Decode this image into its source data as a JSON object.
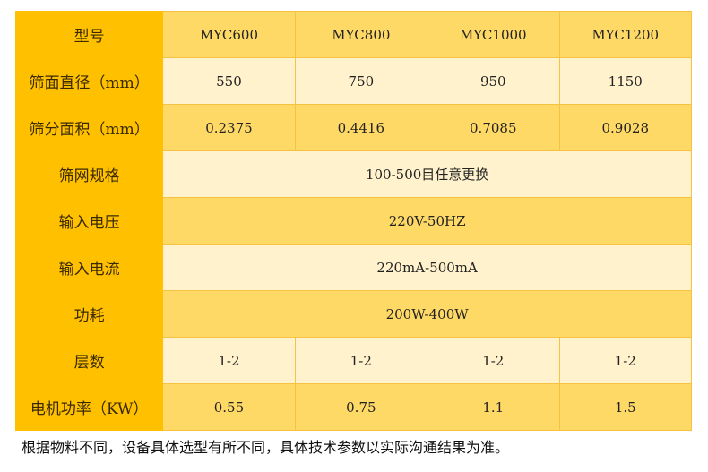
{
  "rows": [
    {
      "label": "型号",
      "values": [
        "MYC600",
        "MYC800",
        "MYC1000",
        "MYC1200"
      ]
    },
    {
      "label": "筛面直径（mm）",
      "values": [
        "550",
        "750",
        "950",
        "1150"
      ]
    },
    {
      "label": "筛分面积（mm）",
      "values": [
        "0.2375",
        "0.4416",
        "0.7085",
        "0.9028"
      ]
    },
    {
      "label": "筛网规格",
      "merged": "100-500目任意更换"
    },
    {
      "label": "输入电压",
      "merged": "220V-50HZ"
    },
    {
      "label": "输入电流",
      "merged": "220mA-500mA"
    },
    {
      "label": "功耗",
      "merged": "200W-400W"
    },
    {
      "label": "层数",
      "values": [
        "1-2",
        "1-2",
        "1-2",
        "1-2"
      ]
    },
    {
      "label": "电机功率（KW）",
      "values": [
        "0.55",
        "0.75",
        "1.1",
        "1.5"
      ]
    }
  ],
  "note": "根据物料不同，设备具体选型有所不同，具体技术参数以实际沟通结果为准。",
  "colors": {
    "label_bg": "#FFC000",
    "dark_row": "#FFD966",
    "light_row": "#FFF2CC"
  }
}
